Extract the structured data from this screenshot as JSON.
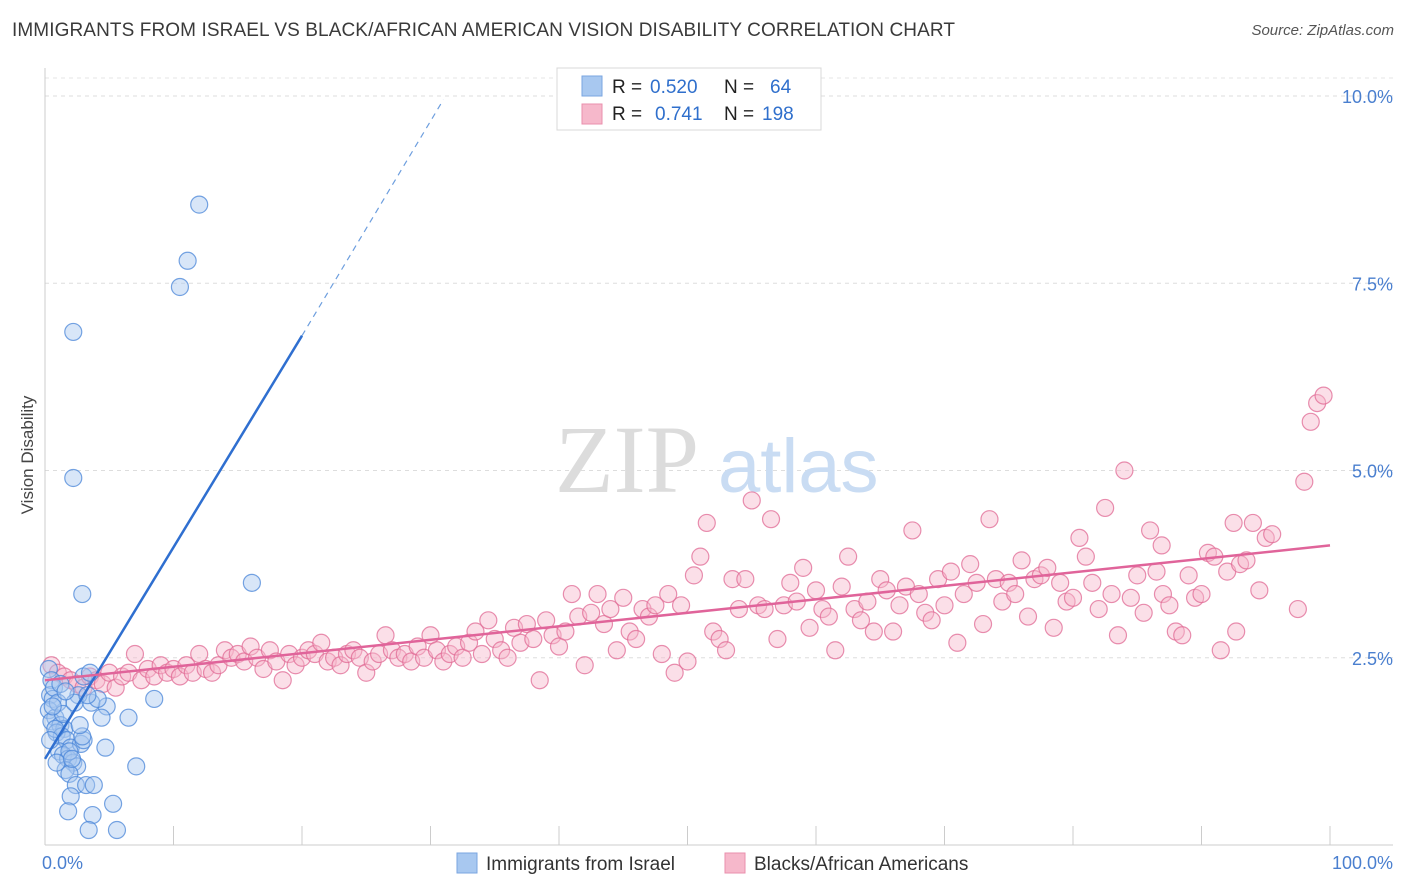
{
  "header": {
    "title": "IMMIGRANTS FROM ISRAEL VS BLACK/AFRICAN AMERICAN VISION DISABILITY CORRELATION CHART",
    "source": "Source: ZipAtlas.com"
  },
  "watermark": {
    "zip": "ZIP",
    "atlas": "atlas"
  },
  "legend": {
    "rows": [
      {
        "r_label": "R =",
        "r_value": "0.520",
        "n_label": "N =",
        "n_value": "64",
        "color": "#a8c8f0"
      },
      {
        "r_label": "R =",
        "r_value": "0.741",
        "n_label": "N =",
        "n_value": "198",
        "color": "#f6b8cb"
      }
    ]
  },
  "bottom_legend": [
    {
      "label": "Immigrants from Israel",
      "color": "#a8c8f0"
    },
    {
      "label": "Blacks/African Americans",
      "color": "#f6b8cb"
    }
  ],
  "chart_data": {
    "type": "scatter",
    "title": "IMMIGRANTS FROM ISRAEL VS BLACK/AFRICAN AMERICAN VISION DISABILITY CORRELATION CHART",
    "ylabel": "Vision Disability",
    "xlabel": "",
    "xlim": [
      0,
      100
    ],
    "ylim": [
      0,
      10.4
    ],
    "x_tick_labels": [
      "0.0%",
      "100.0%"
    ],
    "y_ticks": [
      {
        "value": 2.5,
        "label": "2.5%"
      },
      {
        "value": 5.0,
        "label": "5.0%"
      },
      {
        "value": 7.5,
        "label": "7.5%"
      },
      {
        "value": 10.0,
        "label": "10.0%"
      }
    ],
    "grid": "horizontal-dashed",
    "series": [
      {
        "name": "Immigrants from Israel",
        "color": "#4a86d8",
        "fill": "#a8c8f0",
        "r": 0.52,
        "n": 64,
        "trend": {
          "x0": 0,
          "y0": 1.15,
          "x1": 20,
          "y1": 6.8,
          "dash_to_x": 31,
          "dash_to_y": 9.95
        },
        "points": [
          [
            0.3,
            2.35
          ],
          [
            0.5,
            2.2
          ],
          [
            0.4,
            2.0
          ],
          [
            0.6,
            1.95
          ],
          [
            0.7,
            2.1
          ],
          [
            0.3,
            1.8
          ],
          [
            0.8,
            1.7
          ],
          [
            0.5,
            1.65
          ],
          [
            1.0,
            1.9
          ],
          [
            1.2,
            1.6
          ],
          [
            1.5,
            1.55
          ],
          [
            0.9,
            1.5
          ],
          [
            1.3,
            1.45
          ],
          [
            1.7,
            1.4
          ],
          [
            2.0,
            1.3
          ],
          [
            1.1,
            1.25
          ],
          [
            1.4,
            1.2
          ],
          [
            1.8,
            1.15
          ],
          [
            2.2,
            1.1
          ],
          [
            2.5,
            1.05
          ],
          [
            1.6,
            1.0
          ],
          [
            2.8,
            1.35
          ],
          [
            3.0,
            1.4
          ],
          [
            1.9,
            0.95
          ],
          [
            2.4,
            0.8
          ],
          [
            3.2,
            0.8
          ],
          [
            3.8,
            0.8
          ],
          [
            2.0,
            0.65
          ],
          [
            1.8,
            0.45
          ],
          [
            3.7,
            0.4
          ],
          [
            5.3,
            0.55
          ],
          [
            3.4,
            0.2
          ],
          [
            5.6,
            0.2
          ],
          [
            2.2,
            6.85
          ],
          [
            2.2,
            4.9
          ],
          [
            2.9,
            3.35
          ],
          [
            12.0,
            8.55
          ],
          [
            11.1,
            7.8
          ],
          [
            10.5,
            7.45
          ],
          [
            16.1,
            3.5
          ],
          [
            8.5,
            1.95
          ],
          [
            6.5,
            1.7
          ],
          [
            7.1,
            1.05
          ],
          [
            4.8,
            1.85
          ],
          [
            4.4,
            1.7
          ],
          [
            3.6,
            1.9
          ],
          [
            4.1,
            1.95
          ],
          [
            3.0,
            2.25
          ],
          [
            2.6,
            2.0
          ],
          [
            1.2,
            2.15
          ],
          [
            3.5,
            2.3
          ],
          [
            2.9,
            1.45
          ],
          [
            4.7,
            1.3
          ],
          [
            0.8,
            1.55
          ],
          [
            1.4,
            1.75
          ],
          [
            2.3,
            1.9
          ],
          [
            0.6,
            1.85
          ],
          [
            1.6,
            2.05
          ],
          [
            3.3,
            2.0
          ],
          [
            2.7,
            1.6
          ],
          [
            1.9,
            1.25
          ],
          [
            0.9,
            1.1
          ],
          [
            2.1,
            1.15
          ],
          [
            0.4,
            1.4
          ]
        ]
      },
      {
        "name": "Blacks/African Americans",
        "color": "#e06a94",
        "fill": "#f6b8cb",
        "r": 0.741,
        "n": 198,
        "trend": {
          "x0": 0,
          "y0": 2.2,
          "x1": 100,
          "y1": 4.0
        },
        "points": [
          [
            0.5,
            2.4
          ],
          [
            1.0,
            2.3
          ],
          [
            1.5,
            2.25
          ],
          [
            2.0,
            2.2
          ],
          [
            2.5,
            2.15
          ],
          [
            3.0,
            2.1
          ],
          [
            3.5,
            2.25
          ],
          [
            4.0,
            2.2
          ],
          [
            4.5,
            2.15
          ],
          [
            5.0,
            2.3
          ],
          [
            5.5,
            2.1
          ],
          [
            6.0,
            2.25
          ],
          [
            6.5,
            2.3
          ],
          [
            7.0,
            2.55
          ],
          [
            7.5,
            2.2
          ],
          [
            8.0,
            2.35
          ],
          [
            8.5,
            2.25
          ],
          [
            9.0,
            2.4
          ],
          [
            9.5,
            2.3
          ],
          [
            10.0,
            2.35
          ],
          [
            10.5,
            2.25
          ],
          [
            11.0,
            2.4
          ],
          [
            11.5,
            2.3
          ],
          [
            12.0,
            2.55
          ],
          [
            12.5,
            2.35
          ],
          [
            13.0,
            2.3
          ],
          [
            13.5,
            2.4
          ],
          [
            14.0,
            2.6
          ],
          [
            14.5,
            2.5
          ],
          [
            15.0,
            2.55
          ],
          [
            15.5,
            2.45
          ],
          [
            16.0,
            2.65
          ],
          [
            16.5,
            2.5
          ],
          [
            17.0,
            2.35
          ],
          [
            17.5,
            2.6
          ],
          [
            18.0,
            2.45
          ],
          [
            18.5,
            2.2
          ],
          [
            19.0,
            2.55
          ],
          [
            19.5,
            2.4
          ],
          [
            20.0,
            2.5
          ],
          [
            20.5,
            2.6
          ],
          [
            21.0,
            2.55
          ],
          [
            21.5,
            2.7
          ],
          [
            22.0,
            2.45
          ],
          [
            22.5,
            2.5
          ],
          [
            23.0,
            2.4
          ],
          [
            23.5,
            2.55
          ],
          [
            24.0,
            2.6
          ],
          [
            24.5,
            2.5
          ],
          [
            25.0,
            2.3
          ],
          [
            25.5,
            2.45
          ],
          [
            26.0,
            2.55
          ],
          [
            26.5,
            2.8
          ],
          [
            27.0,
            2.6
          ],
          [
            27.5,
            2.5
          ],
          [
            28.0,
            2.55
          ],
          [
            28.5,
            2.45
          ],
          [
            29.0,
            2.65
          ],
          [
            29.5,
            2.5
          ],
          [
            30.0,
            2.8
          ],
          [
            30.5,
            2.6
          ],
          [
            31.0,
            2.45
          ],
          [
            31.5,
            2.55
          ],
          [
            32.0,
            2.65
          ],
          [
            32.5,
            2.5
          ],
          [
            33.0,
            2.7
          ],
          [
            33.5,
            2.85
          ],
          [
            34.0,
            2.55
          ],
          [
            34.5,
            3.0
          ],
          [
            35.0,
            2.75
          ],
          [
            35.5,
            2.6
          ],
          [
            36.0,
            2.5
          ],
          [
            36.5,
            2.9
          ],
          [
            37.0,
            2.7
          ],
          [
            37.5,
            2.95
          ],
          [
            38.0,
            2.75
          ],
          [
            38.5,
            2.2
          ],
          [
            39.0,
            3.0
          ],
          [
            39.5,
            2.8
          ],
          [
            40.0,
            2.65
          ],
          [
            40.5,
            2.85
          ],
          [
            41.0,
            3.35
          ],
          [
            41.5,
            3.05
          ],
          [
            42.0,
            2.4
          ],
          [
            42.5,
            3.1
          ],
          [
            43.0,
            3.35
          ],
          [
            43.5,
            2.95
          ],
          [
            44.0,
            3.15
          ],
          [
            44.5,
            2.6
          ],
          [
            45.0,
            3.3
          ],
          [
            45.5,
            2.85
          ],
          [
            46.0,
            2.75
          ],
          [
            46.5,
            3.15
          ],
          [
            47.0,
            3.05
          ],
          [
            47.5,
            3.2
          ],
          [
            48.0,
            2.55
          ],
          [
            48.5,
            3.35
          ],
          [
            49.0,
            2.3
          ],
          [
            49.5,
            3.2
          ],
          [
            50.0,
            2.45
          ],
          [
            50.5,
            3.6
          ],
          [
            51.0,
            3.85
          ],
          [
            51.5,
            4.3
          ],
          [
            52.0,
            2.85
          ],
          [
            52.5,
            2.75
          ],
          [
            53.0,
            2.6
          ],
          [
            53.5,
            3.55
          ],
          [
            54.0,
            3.15
          ],
          [
            54.5,
            3.55
          ],
          [
            55.0,
            4.6
          ],
          [
            55.5,
            3.2
          ],
          [
            56.0,
            3.15
          ],
          [
            56.5,
            4.35
          ],
          [
            57.0,
            2.75
          ],
          [
            57.5,
            3.2
          ],
          [
            58.0,
            3.5
          ],
          [
            58.5,
            3.25
          ],
          [
            59.0,
            3.7
          ],
          [
            59.5,
            2.9
          ],
          [
            60.0,
            3.4
          ],
          [
            60.5,
            3.15
          ],
          [
            61.0,
            3.05
          ],
          [
            61.5,
            2.6
          ],
          [
            62.0,
            3.45
          ],
          [
            62.5,
            3.85
          ],
          [
            63.0,
            3.15
          ],
          [
            63.5,
            3.0
          ],
          [
            64.0,
            3.25
          ],
          [
            64.5,
            2.85
          ],
          [
            65.0,
            3.55
          ],
          [
            65.5,
            3.4
          ],
          [
            66.0,
            2.85
          ],
          [
            66.5,
            3.2
          ],
          [
            67.0,
            3.45
          ],
          [
            67.5,
            4.2
          ],
          [
            68.0,
            3.35
          ],
          [
            68.5,
            3.1
          ],
          [
            69.0,
            3.0
          ],
          [
            69.5,
            3.55
          ],
          [
            70.0,
            3.2
          ],
          [
            70.5,
            3.65
          ],
          [
            71.0,
            2.7
          ],
          [
            71.5,
            3.35
          ],
          [
            72.0,
            3.75
          ],
          [
            72.5,
            3.5
          ],
          [
            73.0,
            2.95
          ],
          [
            73.5,
            4.35
          ],
          [
            74.0,
            3.55
          ],
          [
            74.5,
            3.25
          ],
          [
            75.0,
            3.5
          ],
          [
            75.5,
            3.35
          ],
          [
            76.0,
            3.8
          ],
          [
            76.5,
            3.05
          ],
          [
            77.0,
            3.55
          ],
          [
            77.5,
            3.6
          ],
          [
            78.0,
            3.7
          ],
          [
            78.5,
            2.9
          ],
          [
            79.0,
            3.5
          ],
          [
            79.5,
            3.25
          ],
          [
            80.0,
            3.3
          ],
          [
            80.5,
            4.1
          ],
          [
            81.0,
            3.85
          ],
          [
            81.5,
            3.5
          ],
          [
            82.0,
            3.15
          ],
          [
            82.5,
            4.5
          ],
          [
            83.0,
            3.35
          ],
          [
            83.5,
            2.8
          ],
          [
            84.0,
            5.0
          ],
          [
            84.5,
            3.3
          ],
          [
            85.0,
            3.6
          ],
          [
            85.5,
            3.1
          ],
          [
            86.0,
            4.2
          ],
          [
            86.5,
            3.65
          ],
          [
            87.0,
            3.35
          ],
          [
            87.5,
            3.2
          ],
          [
            88.0,
            2.85
          ],
          [
            88.5,
            2.8
          ],
          [
            89.0,
            3.6
          ],
          [
            89.5,
            3.3
          ],
          [
            90.0,
            3.35
          ],
          [
            90.5,
            3.9
          ],
          [
            91.0,
            3.85
          ],
          [
            91.5,
            2.6
          ],
          [
            92.0,
            3.65
          ],
          [
            92.5,
            4.3
          ],
          [
            93.0,
            3.75
          ],
          [
            93.5,
            3.8
          ],
          [
            94.0,
            4.3
          ],
          [
            94.5,
            3.4
          ],
          [
            95.0,
            4.1
          ],
          [
            95.5,
            4.15
          ],
          [
            97.5,
            3.15
          ],
          [
            98.0,
            4.85
          ],
          [
            98.5,
            5.65
          ],
          [
            99.0,
            5.9
          ],
          [
            99.5,
            6.0
          ],
          [
            92.7,
            2.85
          ],
          [
            86.9,
            4.0
          ]
        ]
      }
    ]
  }
}
